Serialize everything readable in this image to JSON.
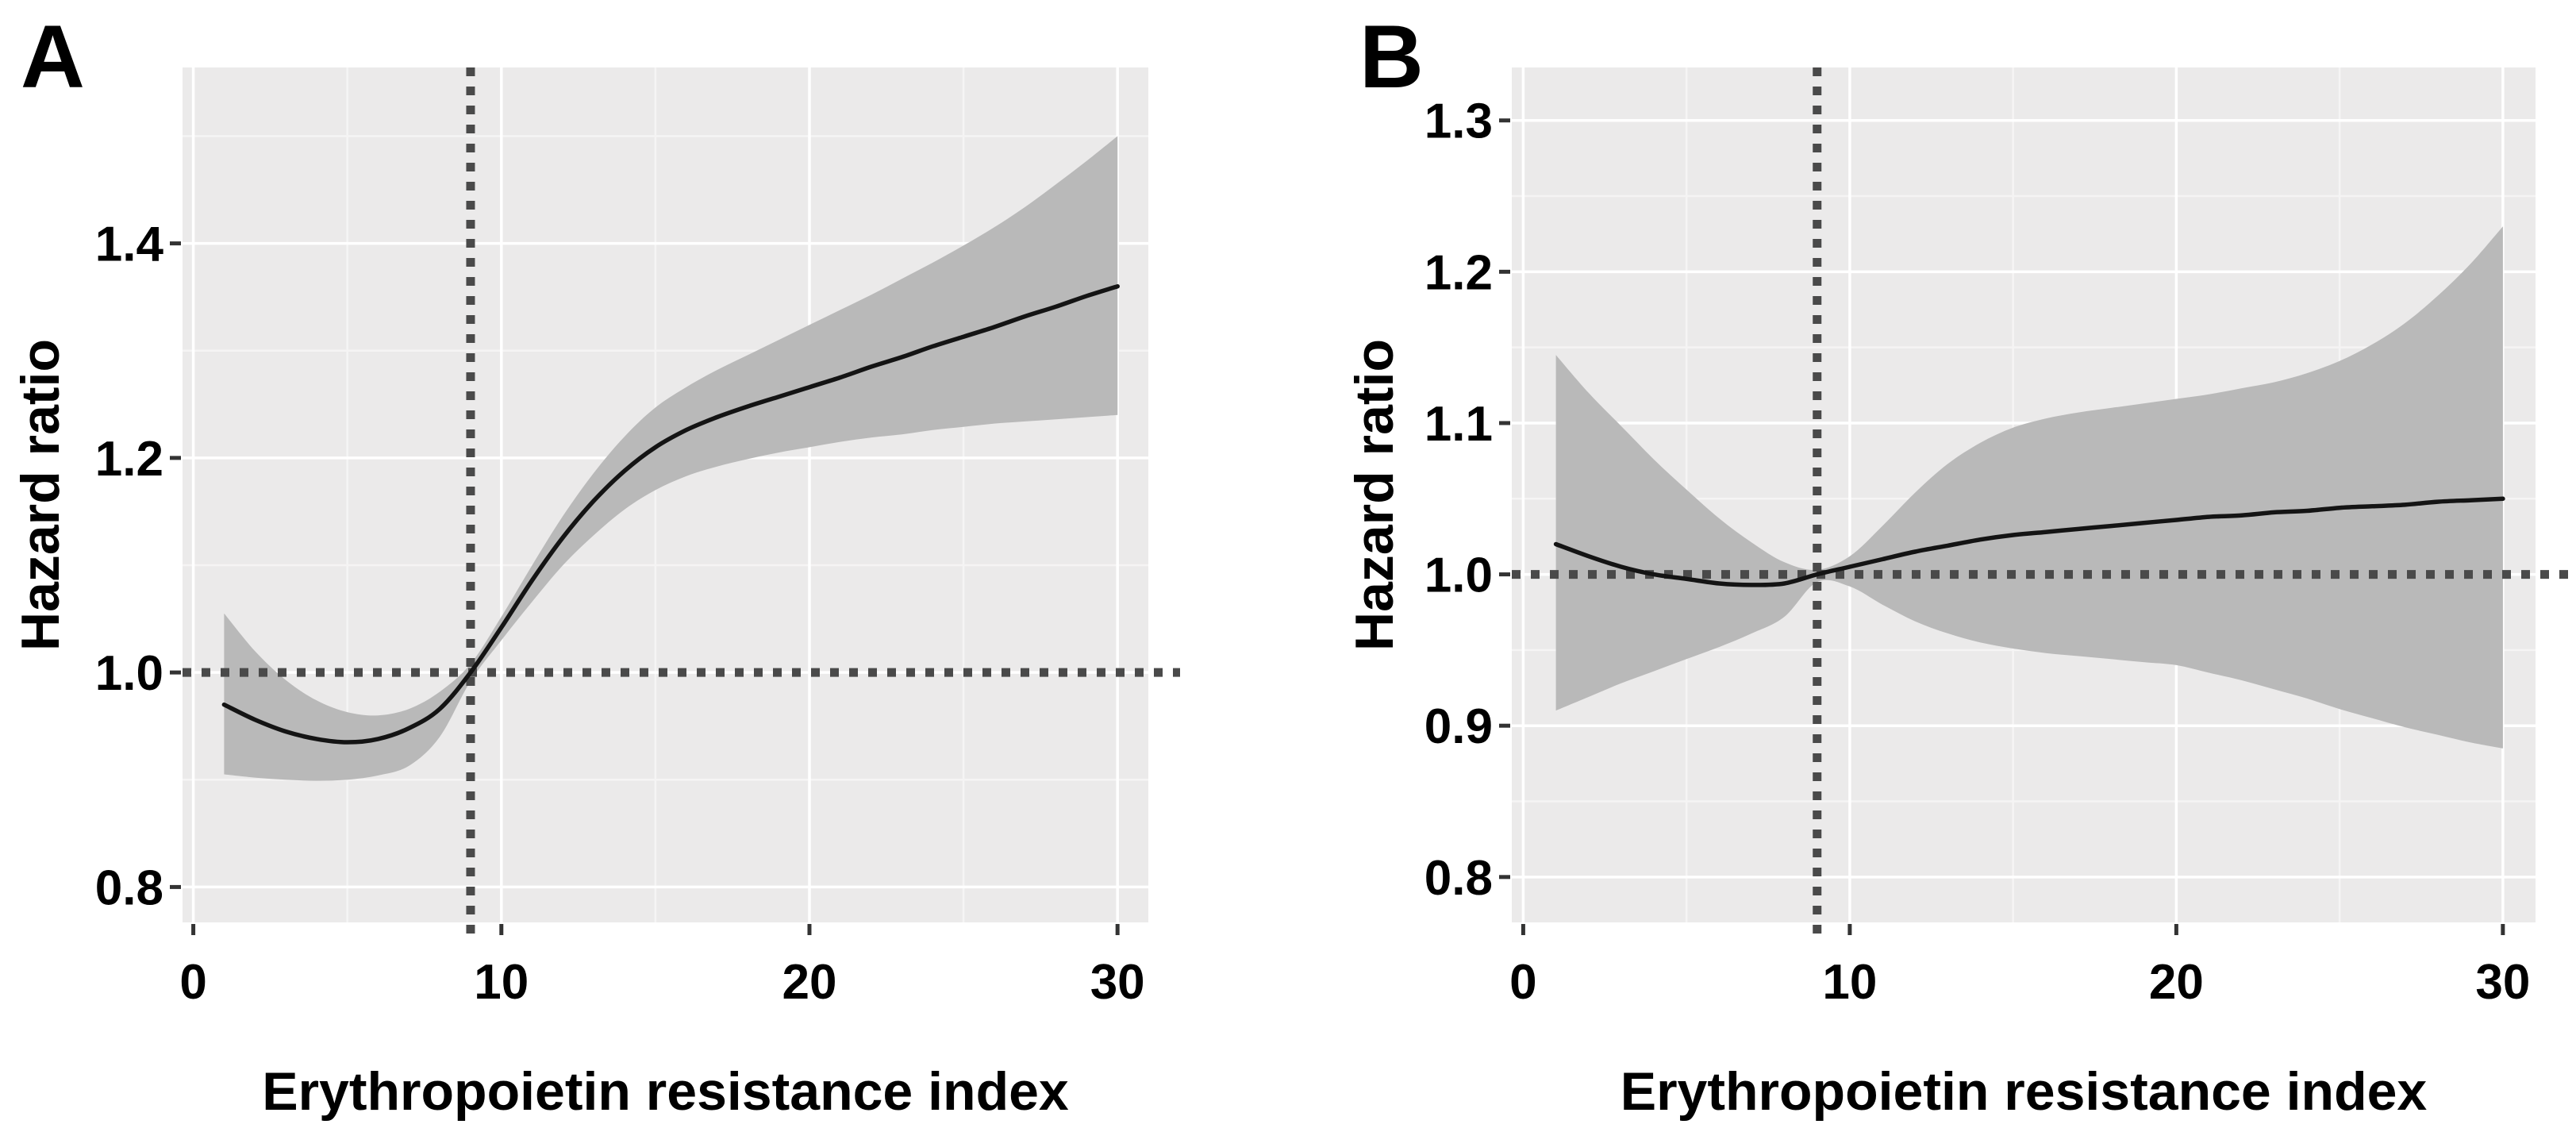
{
  "figure": {
    "type": "dual-panel restricted cubic spline figure",
    "background": "#ffffff",
    "colors": {
      "plot_background": "#ebeaea",
      "grid_major": "#ffffff",
      "grid_minor": "#f5f4f4",
      "band": "#b9b9b9",
      "curve": "#141414",
      "reference_line": "#4a4a4a",
      "tick_mark": "#333333",
      "text": "#000000"
    }
  },
  "chart_data": [
    {
      "type": "line",
      "panel_label": "A",
      "title": "",
      "xlabel": "Erythropoietin resistance index",
      "ylabel": "Hazard ratio",
      "xlim": [
        -0.35,
        31
      ],
      "ylim": [
        0.767,
        1.564
      ],
      "x_ticks": [
        0,
        10,
        20,
        30
      ],
      "x_tick_labels": [
        "0",
        "10",
        "20",
        "30"
      ],
      "y_ticks": [
        0.8,
        1.0,
        1.2,
        1.4
      ],
      "y_tick_labels": [
        "0.8",
        "1.0",
        "1.2",
        "1.4"
      ],
      "grid": true,
      "legend": false,
      "reference_lines": {
        "vertical_x": 9,
        "horizontal_y": 1.0
      },
      "x": [
        1,
        2,
        3,
        4,
        5,
        6,
        7,
        8,
        9,
        10,
        11,
        12,
        13,
        14,
        15,
        16,
        17,
        18,
        19,
        20,
        21,
        22,
        23,
        24,
        25,
        26,
        27,
        28,
        29,
        30
      ],
      "series": [
        {
          "name": "hazard_ratio",
          "values": [
            0.97,
            0.956,
            0.945,
            0.938,
            0.935,
            0.938,
            0.948,
            0.966,
            1.0,
            1.042,
            1.086,
            1.126,
            1.16,
            1.188,
            1.21,
            1.226,
            1.238,
            1.248,
            1.257,
            1.266,
            1.275,
            1.285,
            1.294,
            1.304,
            1.313,
            1.322,
            1.332,
            1.341,
            1.351,
            1.36
          ]
        },
        {
          "name": "ci_upper",
          "values": [
            1.055,
            1.02,
            0.993,
            0.974,
            0.963,
            0.96,
            0.966,
            0.982,
            1.008,
            1.052,
            1.1,
            1.146,
            1.186,
            1.22,
            1.247,
            1.266,
            1.282,
            1.296,
            1.31,
            1.324,
            1.338,
            1.352,
            1.367,
            1.382,
            1.398,
            1.415,
            1.434,
            1.455,
            1.477,
            1.5
          ]
        },
        {
          "name": "ci_lower",
          "values": [
            0.905,
            0.902,
            0.9,
            0.899,
            0.9,
            0.904,
            0.913,
            0.94,
            0.992,
            1.03,
            1.066,
            1.1,
            1.128,
            1.152,
            1.17,
            1.183,
            1.192,
            1.199,
            1.205,
            1.21,
            1.215,
            1.219,
            1.222,
            1.226,
            1.229,
            1.232,
            1.234,
            1.236,
            1.238,
            1.24
          ]
        }
      ]
    },
    {
      "type": "line",
      "panel_label": "B",
      "title": "",
      "xlabel": "Erythropoietin resistance index",
      "ylabel": "Hazard ratio",
      "xlim": [
        -0.35,
        31
      ],
      "ylim": [
        0.77,
        1.335
      ],
      "x_ticks": [
        0,
        10,
        20,
        30
      ],
      "x_tick_labels": [
        "0",
        "10",
        "20",
        "30"
      ],
      "y_ticks": [
        0.8,
        0.9,
        1.0,
        1.1,
        1.2,
        1.3
      ],
      "y_tick_labels": [
        "0.8",
        "0.9",
        "1.0",
        "1.1",
        "1.2",
        "1.3"
      ],
      "grid": true,
      "legend": false,
      "reference_lines": {
        "vertical_x": 9,
        "horizontal_y": 1.0
      },
      "x": [
        1,
        2,
        3,
        4,
        5,
        6,
        7,
        8,
        9,
        10,
        11,
        12,
        13,
        14,
        15,
        16,
        17,
        18,
        19,
        20,
        21,
        22,
        23,
        24,
        25,
        26,
        27,
        28,
        29,
        30
      ],
      "series": [
        {
          "name": "hazard_ratio",
          "values": [
            1.02,
            1.012,
            1.005,
            1.0,
            0.997,
            0.994,
            0.993,
            0.994,
            1.0,
            1.005,
            1.01,
            1.015,
            1.019,
            1.023,
            1.026,
            1.028,
            1.03,
            1.032,
            1.034,
            1.036,
            1.038,
            1.039,
            1.041,
            1.042,
            1.044,
            1.045,
            1.046,
            1.048,
            1.049,
            1.05
          ]
        },
        {
          "name": "ci_upper",
          "values": [
            1.145,
            1.12,
            1.098,
            1.076,
            1.056,
            1.037,
            1.021,
            1.008,
            1.003,
            1.012,
            1.032,
            1.054,
            1.073,
            1.087,
            1.097,
            1.103,
            1.107,
            1.11,
            1.113,
            1.116,
            1.119,
            1.123,
            1.127,
            1.133,
            1.141,
            1.152,
            1.166,
            1.184,
            1.205,
            1.23
          ]
        },
        {
          "name": "ci_lower",
          "values": [
            0.91,
            0.919,
            0.928,
            0.936,
            0.944,
            0.952,
            0.961,
            0.972,
            0.995,
            0.992,
            0.98,
            0.969,
            0.961,
            0.955,
            0.951,
            0.948,
            0.946,
            0.944,
            0.942,
            0.94,
            0.935,
            0.93,
            0.924,
            0.918,
            0.911,
            0.905,
            0.899,
            0.894,
            0.889,
            0.885
          ]
        }
      ]
    }
  ]
}
